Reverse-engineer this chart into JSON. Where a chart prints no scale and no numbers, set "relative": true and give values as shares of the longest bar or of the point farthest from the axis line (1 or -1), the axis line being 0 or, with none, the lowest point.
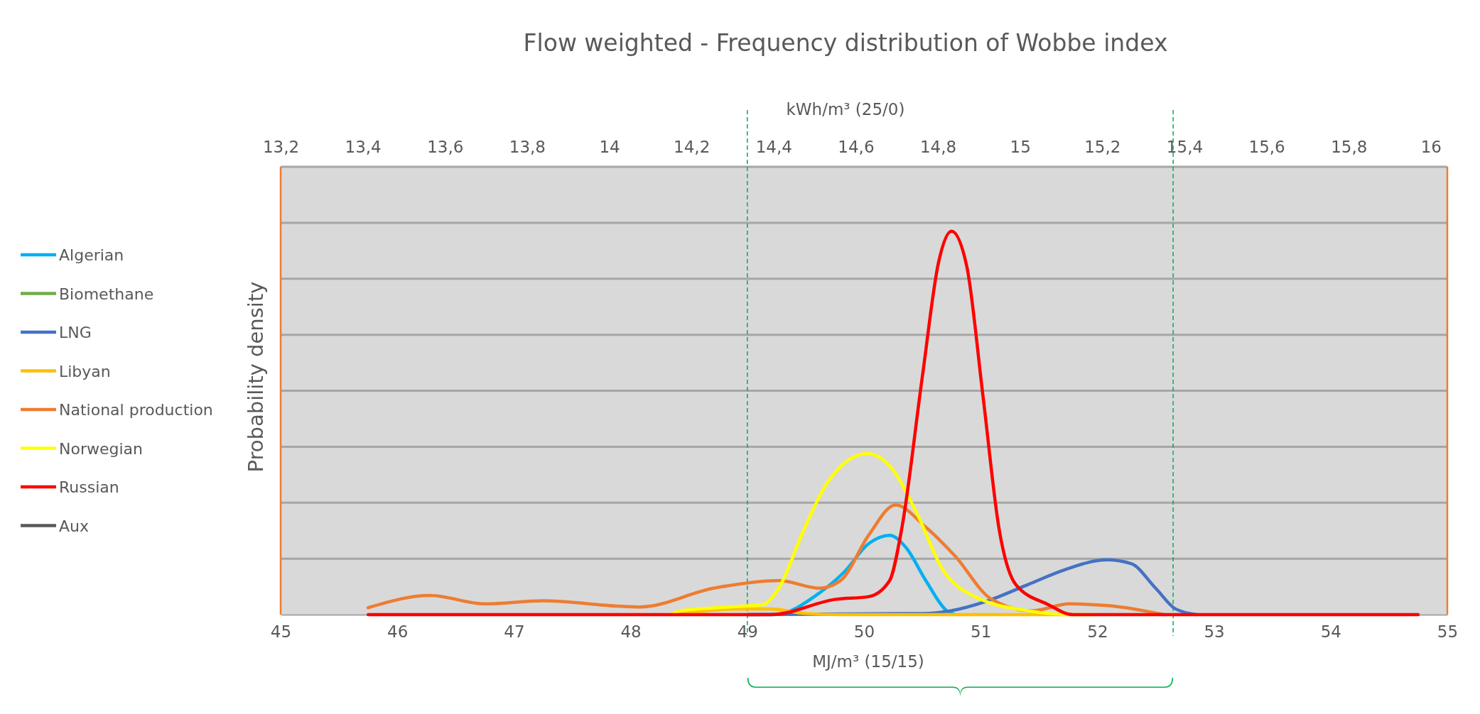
{
  "chart_data": {
    "type": "line",
    "title": "Flow weighted - Frequency distribution of Wobbe index",
    "xlabel": "MJ/m³ (15/15)",
    "ylabel": "Probability density",
    "x2label": "kWh/m³ (25/0)",
    "xlim": [
      45,
      55
    ],
    "xticks": [
      45,
      46,
      47,
      48,
      49,
      50,
      51,
      52,
      53,
      54,
      55
    ],
    "x2lim": [
      13.2,
      16.04
    ],
    "x2ticks": [
      {
        "value": 13.2,
        "label": "13,2"
      },
      {
        "value": 13.4,
        "label": "13,4"
      },
      {
        "value": 13.6,
        "label": "13,6"
      },
      {
        "value": 13.8,
        "label": "13,8"
      },
      {
        "value": 14,
        "label": "14"
      },
      {
        "value": 14.2,
        "label": "14,2"
      },
      {
        "value": 14.4,
        "label": "14,4"
      },
      {
        "value": 14.6,
        "label": "14,6"
      },
      {
        "value": 14.8,
        "label": "14,8"
      },
      {
        "value": 15,
        "label": "15"
      },
      {
        "value": 15.2,
        "label": "15,2"
      },
      {
        "value": 15.4,
        "label": "15,4"
      },
      {
        "value": 15.6,
        "label": "15,6"
      },
      {
        "value": 15.8,
        "label": "15,8"
      },
      {
        "value": 16,
        "label": "16"
      }
    ],
    "relative": true,
    "grid": "y",
    "legend": "left",
    "line_style": "solid",
    "marker": "none",
    "ref_lines": [
      {
        "axis": "x",
        "value": 49,
        "label": null,
        "color": "#00b050",
        "line_style": "dashed"
      },
      {
        "axis": "x",
        "value": 52.65,
        "label": null,
        "color": "#00b050",
        "line_style": "dashed"
      }
    ],
    "series": [
      {
        "name": "Algerian",
        "color": "#00b0f0",
        "x": [
          49,
          49.23,
          49.62,
          49.83,
          50.04,
          50.22,
          50.36,
          50.53,
          50.71,
          50.78
        ],
        "values": [
          0,
          0,
          0.057,
          0.111,
          0.185,
          0.207,
          0.175,
          0.089,
          0.01,
          0
        ]
      },
      {
        "name": "Biomethane",
        "color": "#70ad47"
      },
      {
        "name": "LNG",
        "color": "#4472c4",
        "x": [
          49,
          50.5,
          50.74,
          51.06,
          51.41,
          51.72,
          52.08,
          52.29,
          52.5,
          52.67,
          52.85
        ],
        "values": [
          0,
          0.003,
          0.01,
          0.036,
          0.079,
          0.117,
          0.143,
          0.133,
          0.069,
          0.015,
          0
        ]
      },
      {
        "name": "Libyan",
        "color": "#ffc000",
        "x": [
          48.4,
          48.9,
          49.2,
          49.5,
          49.8,
          51.8
        ],
        "values": [
          0,
          0.015,
          0.015,
          0.003,
          0,
          0
        ]
      },
      {
        "name": "National production",
        "color": "#ed7d31",
        "x": [
          45.75,
          46.28,
          46.75,
          47.25,
          47.9,
          48.08,
          48.71,
          49.27,
          49.62,
          49.8,
          50.04,
          50.27,
          50.53,
          50.78,
          51.09,
          51.44,
          51.76,
          52.11,
          52.57
        ],
        "values": [
          0.018,
          0.05,
          0.028,
          0.036,
          0.022,
          0.02,
          0.069,
          0.089,
          0.069,
          0.089,
          0.207,
          0.286,
          0.228,
          0.153,
          0.041,
          0.01,
          0.028,
          0.023,
          0
        ]
      },
      {
        "name": "Norwegian",
        "color": "#ffff00",
        "x": [
          48.34,
          48.43,
          48.85,
          49.13,
          49.27,
          49.48,
          49.69,
          50.03,
          50.25,
          50.46,
          50.67,
          50.95,
          51.41,
          51.76,
          51.98
        ],
        "values": [
          0,
          0.01,
          0.02,
          0.026,
          0.069,
          0.218,
          0.346,
          0.42,
          0.377,
          0.26,
          0.12,
          0.047,
          0.01,
          0,
          0
        ]
      },
      {
        "name": "Russian",
        "color": "#ff0000",
        "x": [
          45.75,
          49.2,
          49.76,
          50.04,
          50.22,
          50.32,
          50.5,
          50.64,
          50.75,
          50.88,
          51.02,
          51.16,
          51.3,
          51.58,
          51.79,
          54.75
        ],
        "values": [
          0,
          0,
          0.04,
          0.047,
          0.089,
          0.218,
          0.62,
          0.92,
          1,
          0.91,
          0.57,
          0.22,
          0.079,
          0.026,
          0,
          0
        ]
      },
      {
        "name": "Aux",
        "color": "#595959"
      }
    ]
  }
}
